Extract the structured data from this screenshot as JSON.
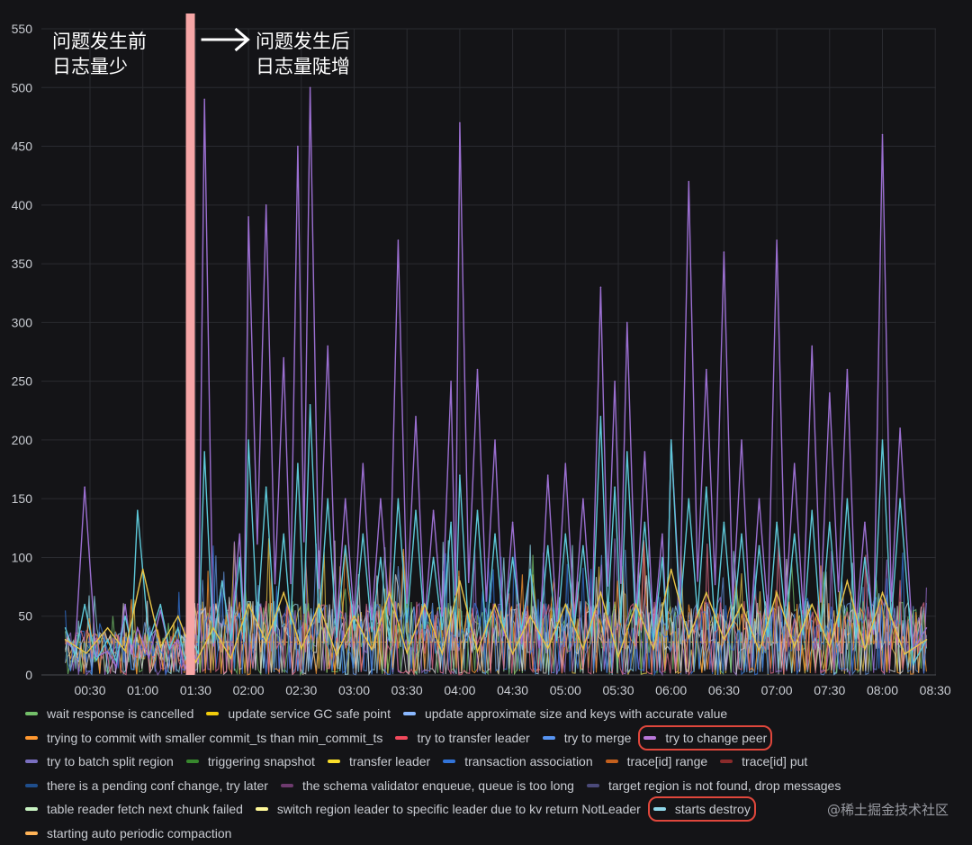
{
  "chart_data": {
    "type": "line",
    "title": "",
    "xlabel": "",
    "ylabel": "",
    "ylim": [
      0,
      550
    ],
    "yticks": [
      0,
      50,
      100,
      150,
      200,
      250,
      300,
      350,
      400,
      450,
      500,
      550
    ],
    "xticks": [
      "00:30",
      "01:00",
      "01:30",
      "02:00",
      "02:30",
      "03:00",
      "03:30",
      "04:00",
      "04:30",
      "05:00",
      "05:30",
      "06:00",
      "06:30",
      "07:00",
      "07:30",
      "08:00",
      "08:30"
    ],
    "grid": true,
    "legend_position": "bottom",
    "event_time": "01:27",
    "series": [
      {
        "name": "try to change peer",
        "color": "#9b6fd1",
        "x": [
          "00:16",
          "00:27",
          "00:40",
          "00:50",
          "00:57",
          "01:10",
          "01:20",
          "01:28",
          "01:35",
          "01:45",
          "01:55",
          "02:00",
          "02:10",
          "02:20",
          "02:28",
          "02:35",
          "02:45",
          "02:55",
          "03:05",
          "03:15",
          "03:25",
          "03:35",
          "03:45",
          "03:55",
          "04:00",
          "04:10",
          "04:20",
          "04:30",
          "04:40",
          "04:50",
          "05:00",
          "05:10",
          "05:20",
          "05:28",
          "05:35",
          "05:45",
          "05:55",
          "06:00",
          "06:10",
          "06:20",
          "06:30",
          "06:40",
          "06:50",
          "07:00",
          "07:10",
          "07:20",
          "07:30",
          "07:40",
          "07:50",
          "08:00",
          "08:10",
          "08:25"
        ],
        "y": [
          30,
          160,
          20,
          60,
          40,
          55,
          30,
          20,
          490,
          80,
          120,
          390,
          400,
          270,
          450,
          500,
          280,
          150,
          180,
          150,
          370,
          220,
          140,
          250,
          470,
          260,
          200,
          130,
          90,
          170,
          180,
          150,
          330,
          250,
          300,
          190,
          120,
          200,
          420,
          260,
          360,
          200,
          150,
          370,
          180,
          280,
          240,
          260,
          130,
          460,
          210,
          40
        ]
      },
      {
        "name": "starts destroy",
        "color": "#5dc8d8",
        "x": [
          "00:16",
          "00:27",
          "00:40",
          "00:50",
          "00:57",
          "01:10",
          "01:20",
          "01:28",
          "01:35",
          "01:45",
          "01:55",
          "02:00",
          "02:10",
          "02:20",
          "02:28",
          "02:35",
          "02:45",
          "02:55",
          "03:05",
          "03:15",
          "03:25",
          "03:35",
          "03:45",
          "03:55",
          "04:00",
          "04:10",
          "04:20",
          "04:30",
          "04:40",
          "04:50",
          "05:00",
          "05:10",
          "05:20",
          "05:28",
          "05:35",
          "05:45",
          "05:55",
          "06:00",
          "06:10",
          "06:20",
          "06:30",
          "06:40",
          "06:50",
          "07:00",
          "07:10",
          "07:20",
          "07:30",
          "07:40",
          "07:50",
          "08:00",
          "08:10",
          "08:25"
        ],
        "y": [
          40,
          60,
          30,
          50,
          140,
          60,
          40,
          30,
          190,
          80,
          100,
          200,
          160,
          120,
          180,
          230,
          150,
          110,
          120,
          100,
          150,
          140,
          100,
          130,
          170,
          140,
          120,
          100,
          90,
          110,
          120,
          110,
          220,
          160,
          190,
          130,
          100,
          200,
          150,
          160,
          130,
          120,
          110,
          130,
          120,
          140,
          130,
          150,
          100,
          200,
          150,
          30
        ]
      },
      {
        "name": "transfer leader",
        "color": "#e8c547",
        "x": [
          "00:16",
          "00:40",
          "01:00",
          "01:20",
          "01:40",
          "02:00",
          "02:20",
          "02:40",
          "03:00",
          "03:20",
          "03:40",
          "04:00",
          "04:20",
          "04:40",
          "05:00",
          "05:20",
          "05:40",
          "06:00",
          "06:20",
          "06:40",
          "07:00",
          "07:20",
          "07:40",
          "08:00",
          "08:25"
        ],
        "y": [
          30,
          40,
          90,
          50,
          40,
          60,
          70,
          60,
          50,
          70,
          60,
          80,
          60,
          50,
          60,
          70,
          60,
          90,
          70,
          60,
          70,
          60,
          80,
          70,
          30
        ]
      }
    ]
  },
  "annotations": {
    "before": "问题发生前\n日志量少",
    "after": "问题发生后\n日志量陡增"
  },
  "legend": [
    [
      {
        "label": "wait response is cancelled",
        "color": "#73bf69"
      },
      {
        "label": "update service GC safe point",
        "color": "#f2cc0c"
      },
      {
        "label": "update approximate size and keys with accurate value",
        "color": "#8ab8ff"
      }
    ],
    [
      {
        "label": "trying to commit with smaller commit_ts than min_commit_ts",
        "color": "#ff9830"
      },
      {
        "label": "try to transfer leader",
        "color": "#f2495c"
      },
      {
        "label": "try to merge",
        "color": "#5794f2"
      },
      {
        "label": "try to change peer",
        "color": "#b877d9",
        "highlight": true
      }
    ],
    [
      {
        "label": "try to batch split region",
        "color": "#7a6fc0"
      },
      {
        "label": "triggering snapshot",
        "color": "#37872d"
      },
      {
        "label": "transfer leader",
        "color": "#fade2a"
      },
      {
        "label": "transaction association",
        "color": "#3274d9"
      },
      {
        "label": "trace[id] range",
        "color": "#c4601d"
      },
      {
        "label": "trace[id] put",
        "color": "#8a2b2b"
      }
    ],
    [
      {
        "label": "there is a pending conf change, try later",
        "color": "#1f4e8c"
      },
      {
        "label": "the schema validator enqueue, queue is too long",
        "color": "#6e3a6e"
      },
      {
        "label": "target region is not found, drop messages",
        "color": "#4b4a7a"
      }
    ],
    [
      {
        "label": "table reader fetch next chunk failed",
        "color": "#c8f2c2"
      },
      {
        "label": "switch region leader to specific leader due to kv return NotLeader",
        "color": "#fff899"
      },
      {
        "label": "starts destroy",
        "color": "#8fd6e8",
        "highlight": true
      }
    ],
    [
      {
        "label": "starting auto periodic compaction",
        "color": "#ffb357"
      }
    ]
  ],
  "watermark": "@稀土掘金技术社区"
}
